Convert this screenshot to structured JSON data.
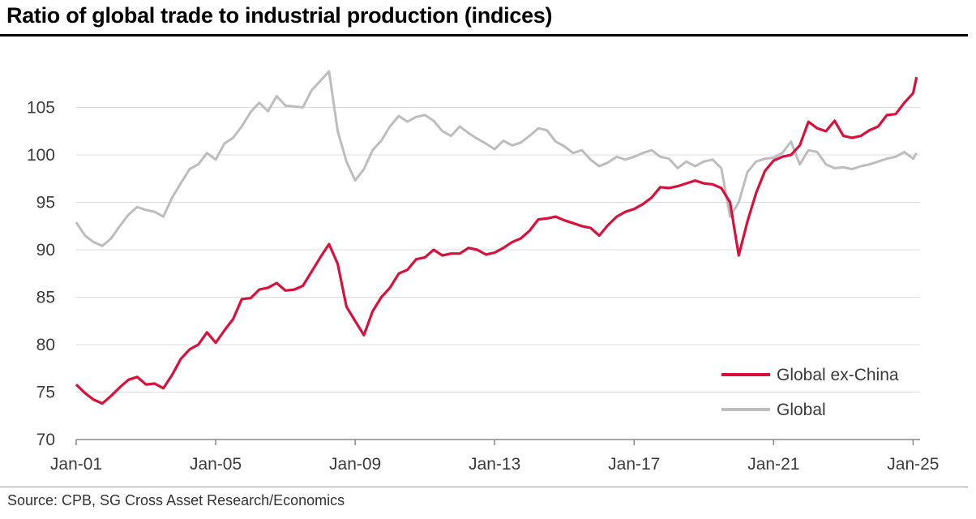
{
  "title": "Ratio of global trade to industrial production (indices)",
  "source": "Source: CPB, SG Cross Asset Research/Economics",
  "colors": {
    "ex_china": "#d8113a",
    "global": "#bdbdbd",
    "grid": "#dcdcdc",
    "axis": "#888888"
  },
  "chart_data": {
    "type": "line",
    "title": "Ratio of global trade to industrial production (indices)",
    "xlabel": "",
    "ylabel": "",
    "ylim": [
      70,
      110
    ],
    "yticks": [
      70,
      75,
      80,
      85,
      90,
      95,
      100,
      105
    ],
    "xlim": [
      2001.0,
      2025.2
    ],
    "xticks": [
      {
        "label": "Jan-01",
        "x": 2001.0
      },
      {
        "label": "Jan-05",
        "x": 2005.0
      },
      {
        "label": "Jan-09",
        "x": 2009.0
      },
      {
        "label": "Jan-13",
        "x": 2013.0
      },
      {
        "label": "Jan-17",
        "x": 2017.0
      },
      {
        "label": "Jan-21",
        "x": 2021.0
      },
      {
        "label": "Jan-25",
        "x": 2025.0
      }
    ],
    "grid": true,
    "legend_position": "bottom-right",
    "series": [
      {
        "name": "Global ex-China",
        "color": "#d8113a",
        "x": [
          2001.0,
          2001.25,
          2001.5,
          2001.75,
          2002.0,
          2002.25,
          2002.5,
          2002.75,
          2003.0,
          2003.25,
          2003.5,
          2003.75,
          2004.0,
          2004.25,
          2004.5,
          2004.75,
          2005.0,
          2005.25,
          2005.5,
          2005.75,
          2006.0,
          2006.25,
          2006.5,
          2006.75,
          2007.0,
          2007.25,
          2007.5,
          2007.75,
          2008.0,
          2008.25,
          2008.5,
          2008.75,
          2009.0,
          2009.25,
          2009.5,
          2009.75,
          2010.0,
          2010.25,
          2010.5,
          2010.75,
          2011.0,
          2011.25,
          2011.5,
          2011.75,
          2012.0,
          2012.25,
          2012.5,
          2012.75,
          2013.0,
          2013.25,
          2013.5,
          2013.75,
          2014.0,
          2014.25,
          2014.5,
          2014.75,
          2015.0,
          2015.25,
          2015.5,
          2015.75,
          2016.0,
          2016.25,
          2016.5,
          2016.75,
          2017.0,
          2017.25,
          2017.5,
          2017.75,
          2018.0,
          2018.25,
          2018.5,
          2018.75,
          2019.0,
          2019.25,
          2019.5,
          2019.75,
          2020.0,
          2020.25,
          2020.5,
          2020.75,
          2021.0,
          2021.25,
          2021.5,
          2021.75,
          2022.0,
          2022.25,
          2022.5,
          2022.75,
          2023.0,
          2023.25,
          2023.5,
          2023.75,
          2024.0,
          2024.25,
          2024.5,
          2024.75,
          2025.0,
          2025.1
        ],
        "values": [
          75.8,
          74.9,
          74.2,
          73.8,
          74.6,
          75.5,
          76.3,
          76.6,
          75.8,
          75.9,
          75.4,
          76.8,
          78.5,
          79.5,
          80.0,
          81.3,
          80.2,
          81.5,
          82.7,
          84.8,
          84.9,
          85.8,
          86.0,
          86.5,
          85.7,
          85.8,
          86.2,
          87.7,
          89.2,
          90.6,
          88.5,
          84.0,
          82.5,
          81.0,
          83.5,
          85.0,
          86.0,
          87.5,
          87.9,
          89.0,
          89.2,
          90.0,
          89.4,
          89.6,
          89.6,
          90.2,
          90.0,
          89.5,
          89.7,
          90.2,
          90.8,
          91.2,
          92.0,
          93.2,
          93.3,
          93.5,
          93.1,
          92.8,
          92.5,
          92.3,
          91.5,
          92.6,
          93.5,
          94.0,
          94.3,
          94.8,
          95.5,
          96.6,
          96.5,
          96.7,
          97.0,
          97.3,
          97.0,
          96.9,
          96.5,
          95.0,
          89.4,
          93.0,
          96.0,
          98.3,
          99.4,
          99.8,
          100.0,
          101.0,
          103.5,
          102.8,
          102.5,
          103.6,
          102.0,
          101.8,
          102.0,
          102.6,
          103.0,
          104.2,
          104.3,
          105.5,
          106.5,
          108.2
        ]
      },
      {
        "name": "Global",
        "color": "#bdbdbd",
        "x": [
          2001.0,
          2001.25,
          2001.5,
          2001.75,
          2002.0,
          2002.25,
          2002.5,
          2002.75,
          2003.0,
          2003.25,
          2003.5,
          2003.75,
          2004.0,
          2004.25,
          2004.5,
          2004.75,
          2005.0,
          2005.25,
          2005.5,
          2005.75,
          2006.0,
          2006.25,
          2006.5,
          2006.75,
          2007.0,
          2007.25,
          2007.5,
          2007.75,
          2008.0,
          2008.25,
          2008.5,
          2008.75,
          2009.0,
          2009.25,
          2009.5,
          2009.75,
          2010.0,
          2010.25,
          2010.5,
          2010.75,
          2011.0,
          2011.25,
          2011.5,
          2011.75,
          2012.0,
          2012.25,
          2012.5,
          2012.75,
          2013.0,
          2013.25,
          2013.5,
          2013.75,
          2014.0,
          2014.25,
          2014.5,
          2014.75,
          2015.0,
          2015.25,
          2015.5,
          2015.75,
          2016.0,
          2016.25,
          2016.5,
          2016.75,
          2017.0,
          2017.25,
          2017.5,
          2017.75,
          2018.0,
          2018.25,
          2018.5,
          2018.75,
          2019.0,
          2019.25,
          2019.5,
          2019.75,
          2020.0,
          2020.25,
          2020.5,
          2020.75,
          2021.0,
          2021.25,
          2021.5,
          2021.75,
          2022.0,
          2022.25,
          2022.5,
          2022.75,
          2023.0,
          2023.25,
          2023.5,
          2023.75,
          2024.0,
          2024.25,
          2024.5,
          2024.75,
          2025.0,
          2025.1
        ],
        "values": [
          92.9,
          91.5,
          90.8,
          90.4,
          91.2,
          92.5,
          93.7,
          94.5,
          94.2,
          94.0,
          93.5,
          95.5,
          97.0,
          98.5,
          99.0,
          100.2,
          99.5,
          101.2,
          101.8,
          103.0,
          104.5,
          105.5,
          104.6,
          106.2,
          105.2,
          105.1,
          105.0,
          106.8,
          107.8,
          108.8,
          102.5,
          99.3,
          97.3,
          98.5,
          100.5,
          101.5,
          103.0,
          104.1,
          103.5,
          104.0,
          104.2,
          103.6,
          102.5,
          102.0,
          103.0,
          102.3,
          101.7,
          101.2,
          100.6,
          101.5,
          101.0,
          101.3,
          102.0,
          102.8,
          102.6,
          101.4,
          100.9,
          100.2,
          100.5,
          99.5,
          98.8,
          99.2,
          99.8,
          99.5,
          99.8,
          100.2,
          100.5,
          99.8,
          99.6,
          98.6,
          99.3,
          98.8,
          99.3,
          99.5,
          98.6,
          93.5,
          95.0,
          98.2,
          99.3,
          99.6,
          99.7,
          100.2,
          101.4,
          99.0,
          100.5,
          100.3,
          99.0,
          98.6,
          98.7,
          98.5,
          98.8,
          99.0,
          99.3,
          99.6,
          99.8,
          100.3,
          99.6,
          100.2
        ]
      }
    ]
  }
}
